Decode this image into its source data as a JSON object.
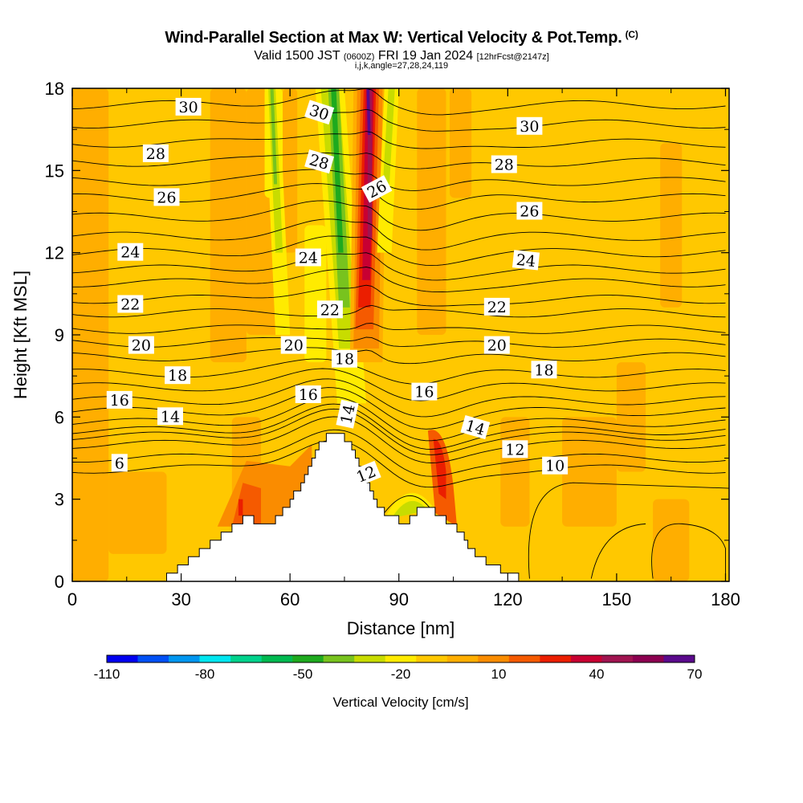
{
  "header": {
    "title": "Wind-Parallel Section at Max W: Vertical Velocity & Pot.Temp.",
    "title_mark": "(C)",
    "valid_prefix": "Valid 1500 JST",
    "valid_utc": "(0600Z)",
    "valid_date": "FRI 19 Jan 2024",
    "forecast_info": "[12hrFcst@2147z]",
    "params": "i,j,k,angle=27,28,24,119"
  },
  "chart_data": {
    "type": "heatmap",
    "title": "Wind-Parallel Section at Max W: Vertical Velocity & Pot.Temp.",
    "xlabel": "Distance [nm]",
    "ylabel": "Height [Kft MSL]",
    "xlim": [
      0,
      181
    ],
    "ylim": [
      0,
      18
    ],
    "x_ticks": [
      0,
      30,
      60,
      90,
      120,
      150,
      180
    ],
    "y_ticks": [
      0,
      3,
      6,
      9,
      12,
      15,
      18
    ],
    "terrain": [
      [
        0,
        0
      ],
      [
        26,
        0
      ],
      [
        26,
        0.3
      ],
      [
        29,
        0.3
      ],
      [
        29,
        0.6
      ],
      [
        32,
        0.6
      ],
      [
        32,
        0.9
      ],
      [
        35,
        0.9
      ],
      [
        35,
        1.2
      ],
      [
        38,
        1.2
      ],
      [
        38,
        1.5
      ],
      [
        41,
        1.5
      ],
      [
        41,
        1.8
      ],
      [
        44,
        1.8
      ],
      [
        44,
        2.1
      ],
      [
        47,
        2.1
      ],
      [
        47,
        2.4
      ],
      [
        50,
        2.4
      ],
      [
        50,
        2.1
      ],
      [
        56,
        2.1
      ],
      [
        56,
        2.4
      ],
      [
        58,
        2.4
      ],
      [
        58,
        2.7
      ],
      [
        60,
        2.7
      ],
      [
        60,
        3.0
      ],
      [
        61,
        3.0
      ],
      [
        61,
        3.3
      ],
      [
        63,
        3.3
      ],
      [
        63,
        3.6
      ],
      [
        64,
        3.6
      ],
      [
        64,
        3.9
      ],
      [
        65,
        3.9
      ],
      [
        65,
        4.2
      ],
      [
        66,
        4.2
      ],
      [
        66,
        4.5
      ],
      [
        67,
        4.5
      ],
      [
        67,
        4.8
      ],
      [
        68,
        4.8
      ],
      [
        68,
        5.1
      ],
      [
        70,
        5.1
      ],
      [
        70,
        5.4
      ],
      [
        75,
        5.4
      ],
      [
        75,
        5.1
      ],
      [
        77,
        5.1
      ],
      [
        77,
        4.8
      ],
      [
        78,
        4.8
      ],
      [
        78,
        4.5
      ],
      [
        79,
        4.5
      ],
      [
        79,
        4.2
      ],
      [
        80,
        4.2
      ],
      [
        80,
        3.9
      ],
      [
        81,
        3.9
      ],
      [
        81,
        3.6
      ],
      [
        82,
        3.6
      ],
      [
        82,
        3.3
      ],
      [
        83,
        3.3
      ],
      [
        83,
        3.0
      ],
      [
        84,
        3.0
      ],
      [
        84,
        2.7
      ],
      [
        86,
        2.7
      ],
      [
        86,
        2.4
      ],
      [
        90,
        2.4
      ],
      [
        90,
        2.1
      ],
      [
        93,
        2.1
      ],
      [
        93,
        2.4
      ],
      [
        95,
        2.4
      ],
      [
        95,
        2.7
      ],
      [
        100,
        2.7
      ],
      [
        100,
        2.4
      ],
      [
        103,
        2.4
      ],
      [
        103,
        2.1
      ],
      [
        106,
        2.1
      ],
      [
        106,
        1.8
      ],
      [
        108,
        1.8
      ],
      [
        108,
        1.5
      ],
      [
        109,
        1.5
      ],
      [
        109,
        1.2
      ],
      [
        111,
        1.2
      ],
      [
        111,
        0.9
      ],
      [
        114,
        0.9
      ],
      [
        114,
        0.6
      ],
      [
        118,
        0.6
      ],
      [
        118,
        0.3
      ],
      [
        123,
        0.3
      ],
      [
        123,
        0
      ],
      [
        181,
        0
      ]
    ],
    "contour_labels": [
      {
        "text": "30",
        "x": 32,
        "y": 17.3
      },
      {
        "text": "30",
        "x": 68,
        "y": 17.1,
        "rot": 18
      },
      {
        "text": "30",
        "x": 126,
        "y": 16.6
      },
      {
        "text": "28",
        "x": 23,
        "y": 15.6
      },
      {
        "text": "28",
        "x": 68,
        "y": 15.3,
        "rot": 16
      },
      {
        "text": "28",
        "x": 119,
        "y": 15.2
      },
      {
        "text": "26",
        "x": 26,
        "y": 14.0
      },
      {
        "text": "26",
        "x": 84,
        "y": 14.3,
        "rot": -28
      },
      {
        "text": "26",
        "x": 126,
        "y": 13.5
      },
      {
        "text": "24",
        "x": 16,
        "y": 12.0
      },
      {
        "text": "24",
        "x": 65,
        "y": 11.8
      },
      {
        "text": "24",
        "x": 125,
        "y": 11.7,
        "rot": 6
      },
      {
        "text": "22",
        "x": 16,
        "y": 10.1
      },
      {
        "text": "22",
        "x": 71,
        "y": 9.9
      },
      {
        "text": "22",
        "x": 117,
        "y": 10.0
      },
      {
        "text": "20",
        "x": 19,
        "y": 8.6
      },
      {
        "text": "20",
        "x": 61,
        "y": 8.6
      },
      {
        "text": "20",
        "x": 117,
        "y": 8.6
      },
      {
        "text": "18",
        "x": 29,
        "y": 7.5
      },
      {
        "text": "18",
        "x": 75,
        "y": 8.1
      },
      {
        "text": "18",
        "x": 130,
        "y": 7.7
      },
      {
        "text": "16",
        "x": 13,
        "y": 6.6
      },
      {
        "text": "16",
        "x": 65,
        "y": 6.8
      },
      {
        "text": "16",
        "x": 97,
        "y": 6.9
      },
      {
        "text": "14",
        "x": 27,
        "y": 6.0
      },
      {
        "text": "14",
        "x": 76,
        "y": 6.1,
        "rot": -78
      },
      {
        "text": "14",
        "x": 111,
        "y": 5.6,
        "rot": 16
      },
      {
        "text": "12",
        "x": 81,
        "y": 3.9,
        "rot": -22
      },
      {
        "text": "12",
        "x": 122,
        "y": 4.8
      },
      {
        "text": "10",
        "x": 133,
        "y": 4.2
      },
      {
        "text": "6",
        "x": 13,
        "y": 4.3
      }
    ],
    "colorbar": {
      "label": "Vertical Velocity [cm/s]",
      "colors": [
        "#0000f0",
        "#0050f5",
        "#0096f0",
        "#00e6f0",
        "#00d28c",
        "#00b950",
        "#1eaa1e",
        "#78c31e",
        "#c8dc00",
        "#ffeb00",
        "#ffc800",
        "#ffae00",
        "#fa8c00",
        "#f55a00",
        "#eb1e00",
        "#c80032",
        "#a01450",
        "#8c0050",
        "#5a0a8c"
      ],
      "ticks": [
        "-110",
        "-80",
        "-50",
        "-20",
        "10",
        "40",
        "70"
      ],
      "range": [
        -110,
        70
      ]
    }
  }
}
